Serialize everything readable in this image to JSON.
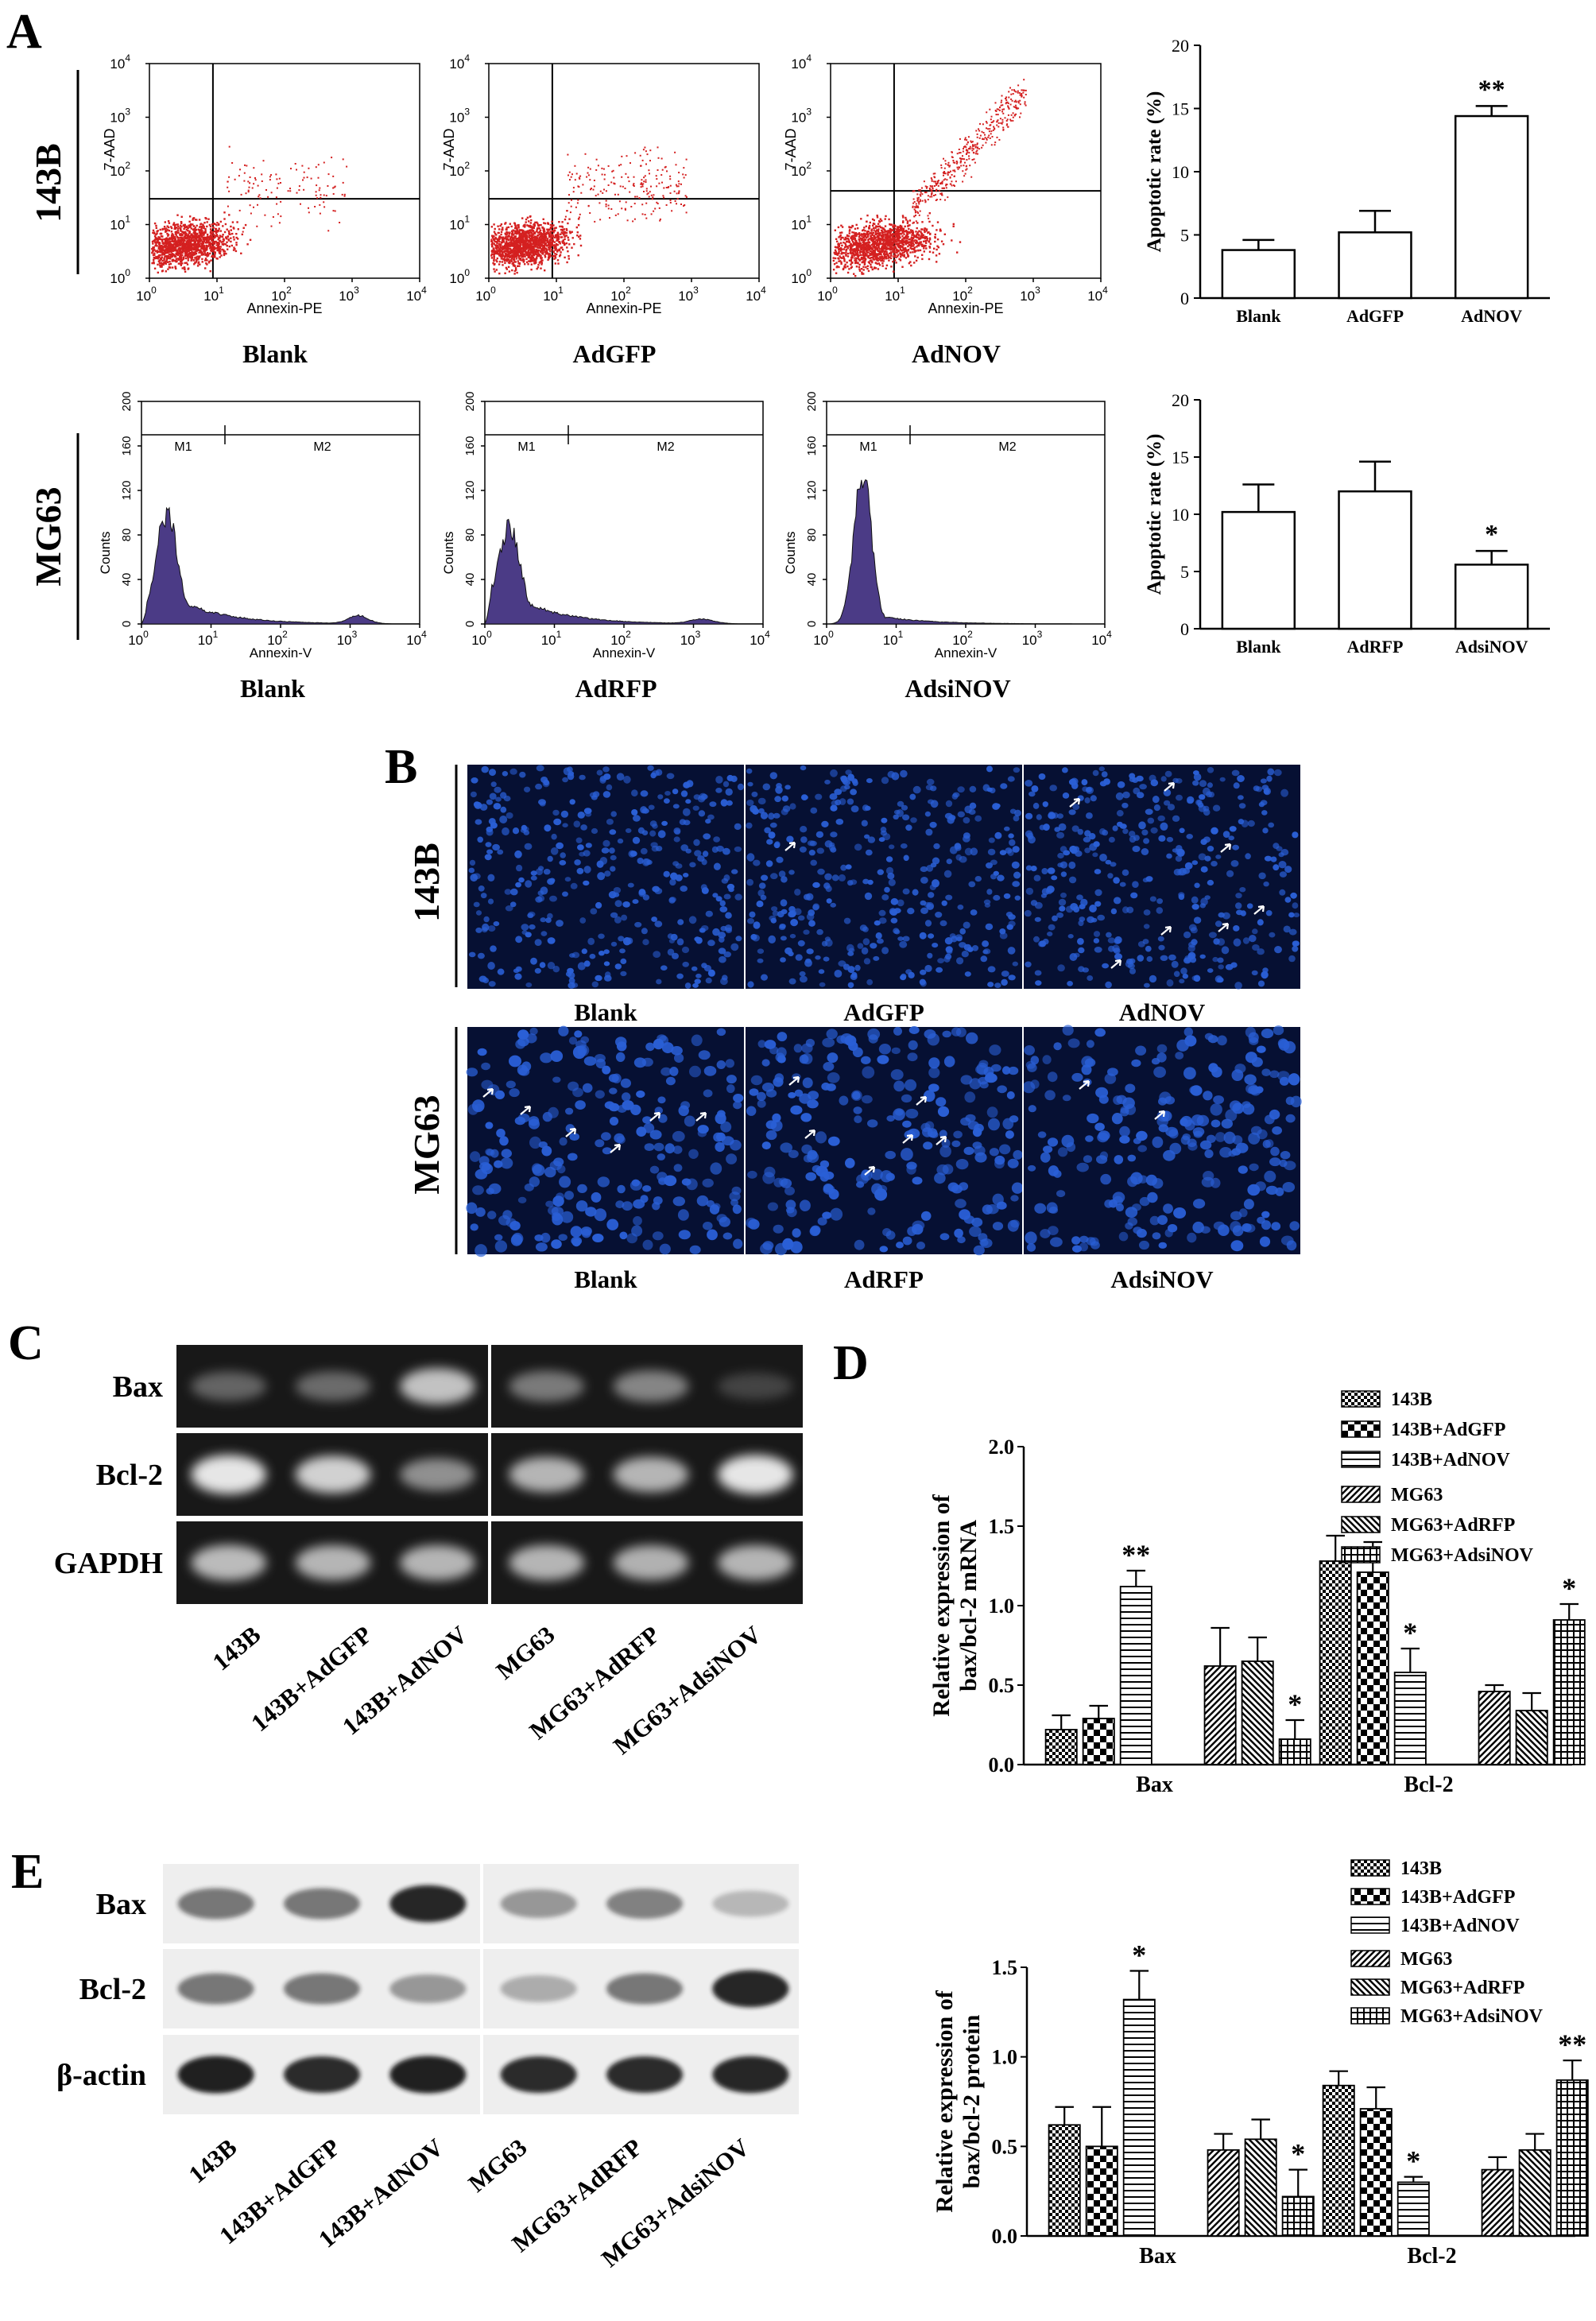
{
  "panel_letters": {
    "A": "A",
    "B": "B",
    "C": "C",
    "D": "D",
    "E": "E"
  },
  "colors": {
    "facs_dots": "#d42020",
    "histogram_fill": "#4b3b86",
    "stain_bg": "#061033",
    "nuclei": "#2a5fd6"
  },
  "panelA": {
    "row1_label": "143B",
    "row2_label": "MG63",
    "facs_row1": {
      "xlabel": "Annexin-PE",
      "ylabel": "7-AAD",
      "tick_labels": [
        "0",
        "1",
        "2",
        "3",
        "4"
      ],
      "plots": [
        "Blank",
        "AdGFP",
        "AdNOV"
      ]
    },
    "hist_row2": {
      "xlabel": "Annexin-V",
      "ylabel": "Counts",
      "x_tick_labels": [
        "0",
        "1",
        "2",
        "3",
        "4"
      ],
      "y_tick_labels": [
        "0",
        "40",
        "80",
        "120",
        "160",
        "200"
      ],
      "gates": [
        "M1",
        "M2"
      ],
      "plots": [
        "Blank",
        "AdRFP",
        "AdsiNOV"
      ]
    }
  },
  "panelB": {
    "row1_label": "143B",
    "row2_label": "MG63",
    "row1_captions": [
      "Blank",
      "AdGFP",
      "AdNOV"
    ],
    "row2_captions": [
      "Blank",
      "AdRFP",
      "AdsiNOV"
    ]
  },
  "panelC": {
    "row_labels": [
      "Bax",
      "Bcl-2",
      "GAPDH"
    ],
    "lane_labels": [
      "143B",
      "143B+AdGFP",
      "143B+AdNOV",
      "MG63",
      "MG63+AdRFP",
      "MG63+AdsiNOV"
    ]
  },
  "panelE": {
    "row_labels": [
      "Bax",
      "Bcl-2",
      "β-actin"
    ],
    "lane_labels": [
      "143B",
      "143B+AdGFP",
      "143B+AdNOV",
      "MG63",
      "MG63+AdRFP",
      "MG63+AdsiNOV"
    ]
  },
  "chart_data": [
    {
      "id": "A1",
      "type": "bar",
      "categories": [
        "Blank",
        "AdGFP",
        "AdNOV"
      ],
      "values": [
        3.8,
        5.2,
        14.4
      ],
      "errors": [
        0.8,
        1.7,
        0.8
      ],
      "significance": [
        "",
        "",
        "**"
      ],
      "ylabel": "Apoptotic rate (%)",
      "ylim": [
        0,
        20
      ],
      "yticks": [
        0,
        5,
        10,
        15,
        20
      ]
    },
    {
      "id": "A2",
      "type": "bar",
      "categories": [
        "Blank",
        "AdRFP",
        "AdsiNOV"
      ],
      "values": [
        10.2,
        12.0,
        5.6
      ],
      "errors": [
        2.4,
        2.6,
        1.2
      ],
      "significance": [
        "",
        "",
        "*"
      ],
      "ylabel": "Apoptotic rate (%)",
      "ylim": [
        0,
        20
      ],
      "yticks": [
        0,
        5,
        10,
        15,
        20
      ]
    },
    {
      "id": "D",
      "type": "bar",
      "categories": [
        "Bax",
        "Bcl-2"
      ],
      "series": [
        {
          "name": "143B",
          "values": [
            0.22,
            1.28
          ],
          "errors": [
            0.09,
            0.16
          ],
          "significance": [
            "",
            ""
          ],
          "pattern": "checker"
        },
        {
          "name": "143B+AdGFP",
          "values": [
            0.29,
            1.21
          ],
          "errors": [
            0.08,
            0.19
          ],
          "significance": [
            "",
            ""
          ],
          "pattern": "bigcheck"
        },
        {
          "name": "143B+AdNOV",
          "values": [
            1.12,
            0.58
          ],
          "errors": [
            0.1,
            0.15
          ],
          "significance": [
            "**",
            "*"
          ],
          "pattern": "hlines"
        },
        {
          "name": "MG63",
          "values": [
            0.62,
            0.46
          ],
          "errors": [
            0.24,
            0.04
          ],
          "significance": [
            "",
            ""
          ],
          "pattern": "diag"
        },
        {
          "name": "MG63+AdRFP",
          "values": [
            0.65,
            0.34
          ],
          "errors": [
            0.15,
            0.11
          ],
          "significance": [
            "",
            ""
          ],
          "pattern": "antidiag"
        },
        {
          "name": "MG63+AdsiNOV",
          "values": [
            0.16,
            0.91
          ],
          "errors": [
            0.12,
            0.1
          ],
          "significance": [
            "*",
            "*"
          ],
          "pattern": "grid"
        }
      ],
      "ylabel": "Relative expression of bax/bcl-2 mRNA",
      "ylim": [
        0,
        2.0
      ],
      "yticks": [
        0.0,
        0.5,
        1.0,
        1.5,
        2.0
      ],
      "legend_position": "top-right"
    },
    {
      "id": "E",
      "type": "bar",
      "categories": [
        "Bax",
        "Bcl-2"
      ],
      "series": [
        {
          "name": "143B",
          "values": [
            0.62,
            0.84
          ],
          "errors": [
            0.1,
            0.08
          ],
          "significance": [
            "",
            ""
          ],
          "pattern": "checker"
        },
        {
          "name": "143B+AdGFP",
          "values": [
            0.5,
            0.71
          ],
          "errors": [
            0.22,
            0.12
          ],
          "significance": [
            "",
            ""
          ],
          "pattern": "bigcheck"
        },
        {
          "name": "143B+AdNOV",
          "values": [
            1.32,
            0.3
          ],
          "errors": [
            0.16,
            0.03
          ],
          "significance": [
            "*",
            "*"
          ],
          "pattern": "hlines"
        },
        {
          "name": "MG63",
          "values": [
            0.48,
            0.37
          ],
          "errors": [
            0.09,
            0.07
          ],
          "significance": [
            "",
            ""
          ],
          "pattern": "diag"
        },
        {
          "name": "MG63+AdRFP",
          "values": [
            0.54,
            0.48
          ],
          "errors": [
            0.11,
            0.09
          ],
          "significance": [
            "",
            ""
          ],
          "pattern": "antidiag"
        },
        {
          "name": "MG63+AdsiNOV",
          "values": [
            0.22,
            0.87
          ],
          "errors": [
            0.15,
            0.11
          ],
          "significance": [
            "*",
            "**"
          ],
          "pattern": "grid"
        }
      ],
      "ylabel": "Relative expression of bax/bcl-2 protein",
      "ylim": [
        0,
        1.5
      ],
      "yticks": [
        0.0,
        0.5,
        1.0,
        1.5
      ],
      "legend_position": "top-right"
    }
  ]
}
